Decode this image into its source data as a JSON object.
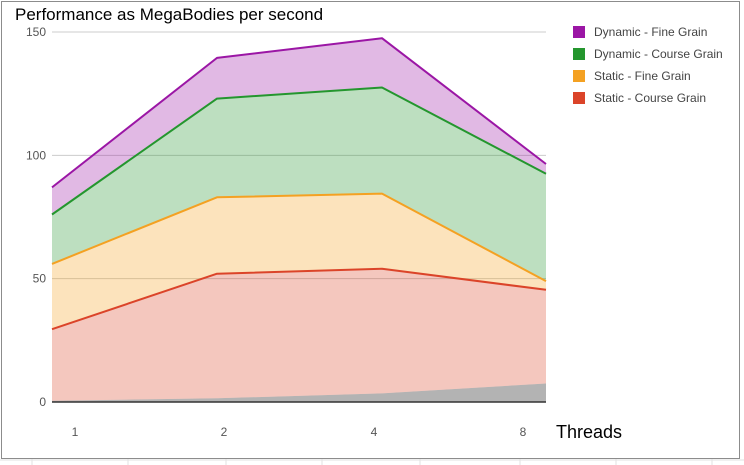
{
  "chart_data": {
    "type": "area",
    "stacked": true,
    "title": "Performance as MegaBodies per second",
    "xlabel": "Threads",
    "ylabel": "",
    "categories": [
      "1",
      "2",
      "4",
      "8"
    ],
    "ylim": [
      0,
      150
    ],
    "yticks": [
      0,
      50,
      100,
      150
    ],
    "grid": true,
    "legend_position": "right",
    "base_series": {
      "name": "",
      "color": "#b3b3b3",
      "values": [
        0.5,
        1.5,
        3.5,
        7.5
      ]
    },
    "series": [
      {
        "name": "Static - Course Grain",
        "color": "#db4429",
        "values": [
          29,
          50.5,
          50.5,
          38
        ]
      },
      {
        "name": "Static - Fine Grain",
        "color": "#f4a122",
        "values": [
          26.5,
          31,
          30.5,
          3.5
        ]
      },
      {
        "name": "Dynamic - Course Grain",
        "color": "#24962e",
        "values": [
          20,
          40,
          43,
          43.5
        ]
      },
      {
        "name": "Dynamic - Fine Grain",
        "color": "#9b16a5",
        "values": [
          11,
          16.5,
          20,
          4
        ]
      }
    ],
    "legend_order": [
      "Dynamic - Fine Grain",
      "Dynamic - Course Grain",
      "Static - Fine Grain",
      "Static - Course Grain"
    ]
  }
}
